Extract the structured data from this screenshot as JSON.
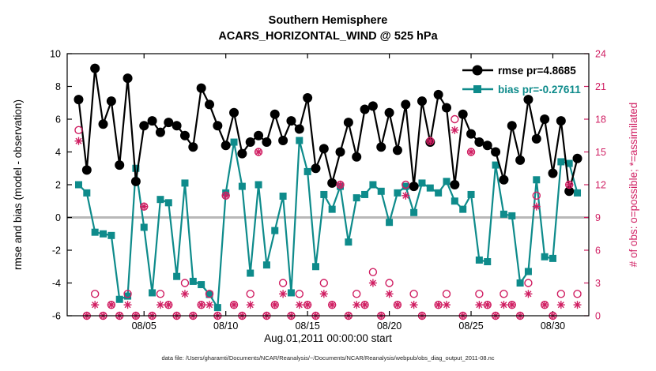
{
  "caption": "data file: /Users/gharamti/Documents/NCAR/Reanalysis/~/Documents/NCAR/Reanalysis/webpub/obs_diag_output_2011-08.nc",
  "chart_data": {
    "type": "line",
    "title": "Southern Hemisphere",
    "subtitle": "ACARS_HORIZONTAL_WIND @ 525 hPa",
    "xlabel": "Aug.01,2011 00:00:00 start",
    "ylabel_left": "rmse and bias (model - observation)",
    "ylabel_right": "# of obs: o=possible; *=assimilated",
    "y_left_range": [
      -6,
      10
    ],
    "y_left_ticks": [
      -6,
      -4,
      -2,
      0,
      2,
      4,
      6,
      8,
      10
    ],
    "y_right_range": [
      0,
      24
    ],
    "y_right_ticks": [
      0,
      3,
      6,
      9,
      12,
      15,
      18,
      21,
      24
    ],
    "x_range_days": [
      -0.7,
      31.2
    ],
    "x_ticks_days": [
      4,
      9,
      14,
      19,
      24,
      29
    ],
    "x_tick_labels": [
      "08/05",
      "08/10",
      "08/15",
      "08/20",
      "08/25",
      "08/30"
    ],
    "x_start_day": 0,
    "x_step_days": 0.5,
    "zero_line": 0,
    "legend_position": "top-right",
    "grid": false,
    "colors": {
      "rmse": "#000000",
      "bias": "#0e8b8b",
      "obs": "#d01e62",
      "zero_line": "#b8b8b8"
    },
    "series": [
      {
        "name": "rmse",
        "legend": "rmse pr=4.8685",
        "axis": "left",
        "marker": "filled-circle",
        "values": [
          7.2,
          2.9,
          9.1,
          5.7,
          7.1,
          3.2,
          8.5,
          2.2,
          5.6,
          5.9,
          5.2,
          5.8,
          5.6,
          5.0,
          4.3,
          7.9,
          6.9,
          5.6,
          4.4,
          6.4,
          3.9,
          4.6,
          5.0,
          4.6,
          6.3,
          4.7,
          5.9,
          5.4,
          7.3,
          3.0,
          4.2,
          2.1,
          4.0,
          5.8,
          3.7,
          6.6,
          6.8,
          4.3,
          6.4,
          4.1,
          6.9,
          1.9,
          7.1,
          4.6,
          7.5,
          6.7,
          2.0,
          6.3,
          5.1,
          4.6,
          4.4,
          4.0,
          2.3,
          5.6,
          3.5,
          7.2,
          4.8,
          6.0,
          2.7,
          5.9,
          1.6,
          3.6
        ]
      },
      {
        "name": "bias",
        "legend": "bias pr=-0.27611",
        "axis": "left",
        "marker": "filled-square",
        "values": [
          2.0,
          1.5,
          -0.9,
          -1.0,
          -1.1,
          -5.0,
          -4.8,
          3.0,
          -0.6,
          -4.6,
          1.1,
          0.9,
          -3.6,
          2.1,
          -3.9,
          -4.1,
          -4.7,
          -5.5,
          1.5,
          4.6,
          1.9,
          -3.4,
          2.0,
          -2.9,
          -0.8,
          1.3,
          -4.6,
          4.7,
          2.8,
          -3.0,
          1.4,
          0.5,
          1.9,
          -1.5,
          1.2,
          1.4,
          2.0,
          1.6,
          -0.3,
          1.5,
          1.9,
          0.3,
          2.1,
          1.8,
          1.5,
          2.2,
          1.0,
          0.5,
          1.4,
          -2.6,
          -2.7,
          3.2,
          0.2,
          0.1,
          -4.0,
          -3.3,
          2.3,
          -2.4,
          -2.5,
          3.4,
          3.3,
          1.5
        ]
      },
      {
        "name": "possible",
        "legend": "o=possible",
        "axis": "right",
        "marker": "open-circle",
        "values": [
          17,
          0,
          2,
          0,
          1,
          0,
          2,
          0,
          10,
          0,
          2,
          1,
          0,
          3,
          0,
          1,
          2,
          0,
          11,
          1,
          0,
          2,
          15,
          0,
          1,
          3,
          0,
          2,
          1,
          0,
          3,
          1,
          12,
          0,
          2,
          1,
          4,
          0,
          3,
          1,
          12,
          2,
          0,
          16,
          1,
          2,
          18,
          0,
          15,
          2,
          1,
          0,
          2,
          1,
          0,
          3,
          11,
          1,
          0,
          2,
          12,
          2
        ]
      },
      {
        "name": "assimilated",
        "legend": "*=assimilated",
        "axis": "right",
        "marker": "asterisk",
        "values": [
          16,
          0,
          1,
          0,
          1,
          0,
          1,
          0,
          10,
          0,
          1,
          1,
          0,
          2,
          0,
          1,
          1,
          0,
          11,
          1,
          0,
          1,
          15,
          0,
          1,
          2,
          0,
          1,
          1,
          0,
          2,
          1,
          12,
          0,
          1,
          1,
          3,
          0,
          2,
          1,
          11,
          1,
          0,
          16,
          1,
          1,
          17,
          0,
          15,
          1,
          1,
          0,
          1,
          1,
          0,
          2,
          10,
          1,
          0,
          1,
          12,
          1
        ]
      }
    ]
  }
}
